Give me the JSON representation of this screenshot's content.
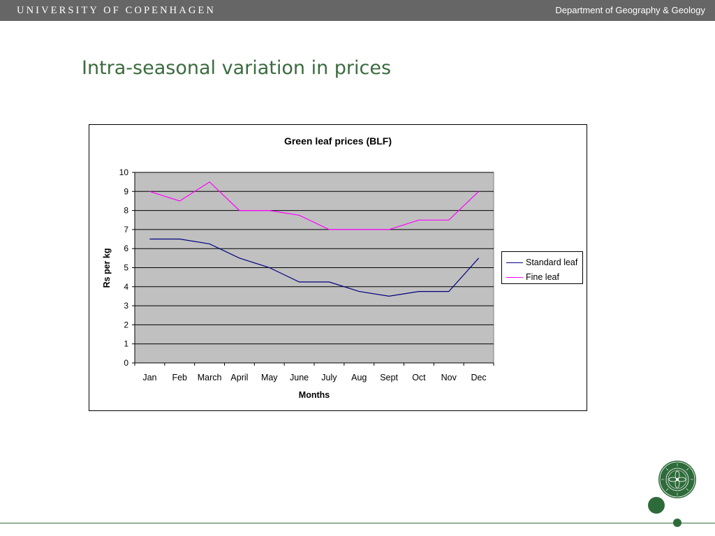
{
  "header": {
    "university": "UNIVERSITY OF COPENHAGEN",
    "department": "Department of Geography & Geology"
  },
  "slide": {
    "title": "Intra-seasonal variation in prices"
  },
  "seal": {
    "icon": "university-seal-icon",
    "text": "NATURALIS · SIGILLUM · FACULTATIS"
  },
  "colors": {
    "title": "#3b6b3e",
    "plot_background": "#c0c0c0",
    "standard_leaf": "#000080",
    "fine_leaf": "#ff00ff",
    "brand_green": "#2e6b3a"
  },
  "chart_data": {
    "type": "line",
    "title": "Green leaf prices (BLF)",
    "xlabel": "Months",
    "ylabel": "Rs per kg",
    "categories": [
      "Jan",
      "Feb",
      "March",
      "April",
      "May",
      "June",
      "July",
      "Aug",
      "Sept",
      "Oct",
      "Nov",
      "Dec"
    ],
    "ylim": [
      0,
      10
    ],
    "yticks": [
      0,
      1,
      2,
      3,
      4,
      5,
      6,
      7,
      8,
      9,
      10
    ],
    "grid": true,
    "legend_position": "right",
    "series": [
      {
        "name": "Standard leaf",
        "color": "#000080",
        "values": [
          6.5,
          6.5,
          6.25,
          5.5,
          5,
          4.25,
          4.25,
          3.75,
          3.5,
          3.75,
          3.75,
          5.5
        ]
      },
      {
        "name": "Fine leaf",
        "color": "#ff00ff",
        "values": [
          9,
          8.5,
          9.5,
          8,
          8,
          7.75,
          7,
          7,
          7,
          7.5,
          7.5,
          9
        ]
      }
    ]
  }
}
